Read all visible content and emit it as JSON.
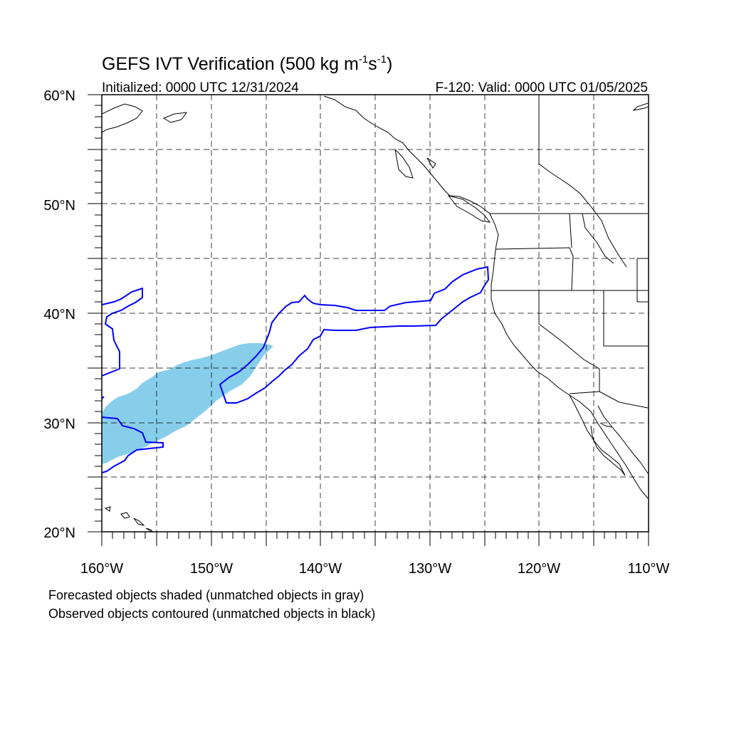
{
  "title": {
    "main": "GEFS IVT Verification (500 kg m",
    "sup1": "-1",
    "mid": "s",
    "sup2": "-1",
    "end": ")"
  },
  "subtitle_left": "Initialized: 0000 UTC 12/31/2024",
  "subtitle_right": "F-120: Valid: 0000 UTC 01/05/2025",
  "lat_labels": [
    "60°N",
    "50°N",
    "40°N",
    "30°N",
    "20°N"
  ],
  "lon_labels": [
    "160°W",
    "150°W",
    "140°W",
    "130°W",
    "120°W",
    "110°W"
  ],
  "map_extent": {
    "lon_min": -160,
    "lon_max": -110,
    "lat_min": 20,
    "lat_max": 60
  },
  "notes": [
    "Forecasted objects shaded (unmatched objects in gray)",
    "Observed objects contoured (unmatched objects in black)"
  ],
  "colors": {
    "forecast_fill": "#87ceeb",
    "observed_contour": "#0000ff",
    "coastline": "#000000",
    "grid": "#000000"
  }
}
